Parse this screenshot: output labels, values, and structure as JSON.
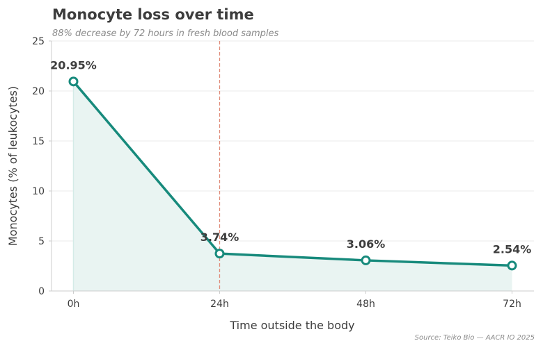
{
  "chart_data": {
    "type": "line",
    "title": "Monocyte loss over time",
    "subtitle": "88% decrease by 72 hours in fresh blood samples",
    "xlabel": "Time outside the body",
    "ylabel": "Monocytes (% of leukocytes)",
    "categories": [
      "0h",
      "24h",
      "48h",
      "72h"
    ],
    "x": [
      0,
      24,
      48,
      72
    ],
    "series": [
      {
        "name": "Monocytes",
        "values": [
          20.95,
          3.74,
          3.06,
          2.54
        ],
        "labels": [
          "20.95%",
          "3.74%",
          "3.06%",
          "2.54%"
        ]
      }
    ],
    "xlim": [
      -3.6,
      75.6
    ],
    "ylim": [
      0,
      25
    ],
    "yticks": [
      0,
      5,
      10,
      15,
      20,
      25
    ],
    "reference_line_x": 24,
    "grid": true,
    "source": "Source: Teiko Bio — AACR IO 2025",
    "colors": {
      "line": "#178a7c",
      "area": "#e9f4f2",
      "reference": "#e08b79",
      "grid": "#ebebeb",
      "axis": "#cccccc",
      "marker_fill": "#ffffff"
    }
  }
}
